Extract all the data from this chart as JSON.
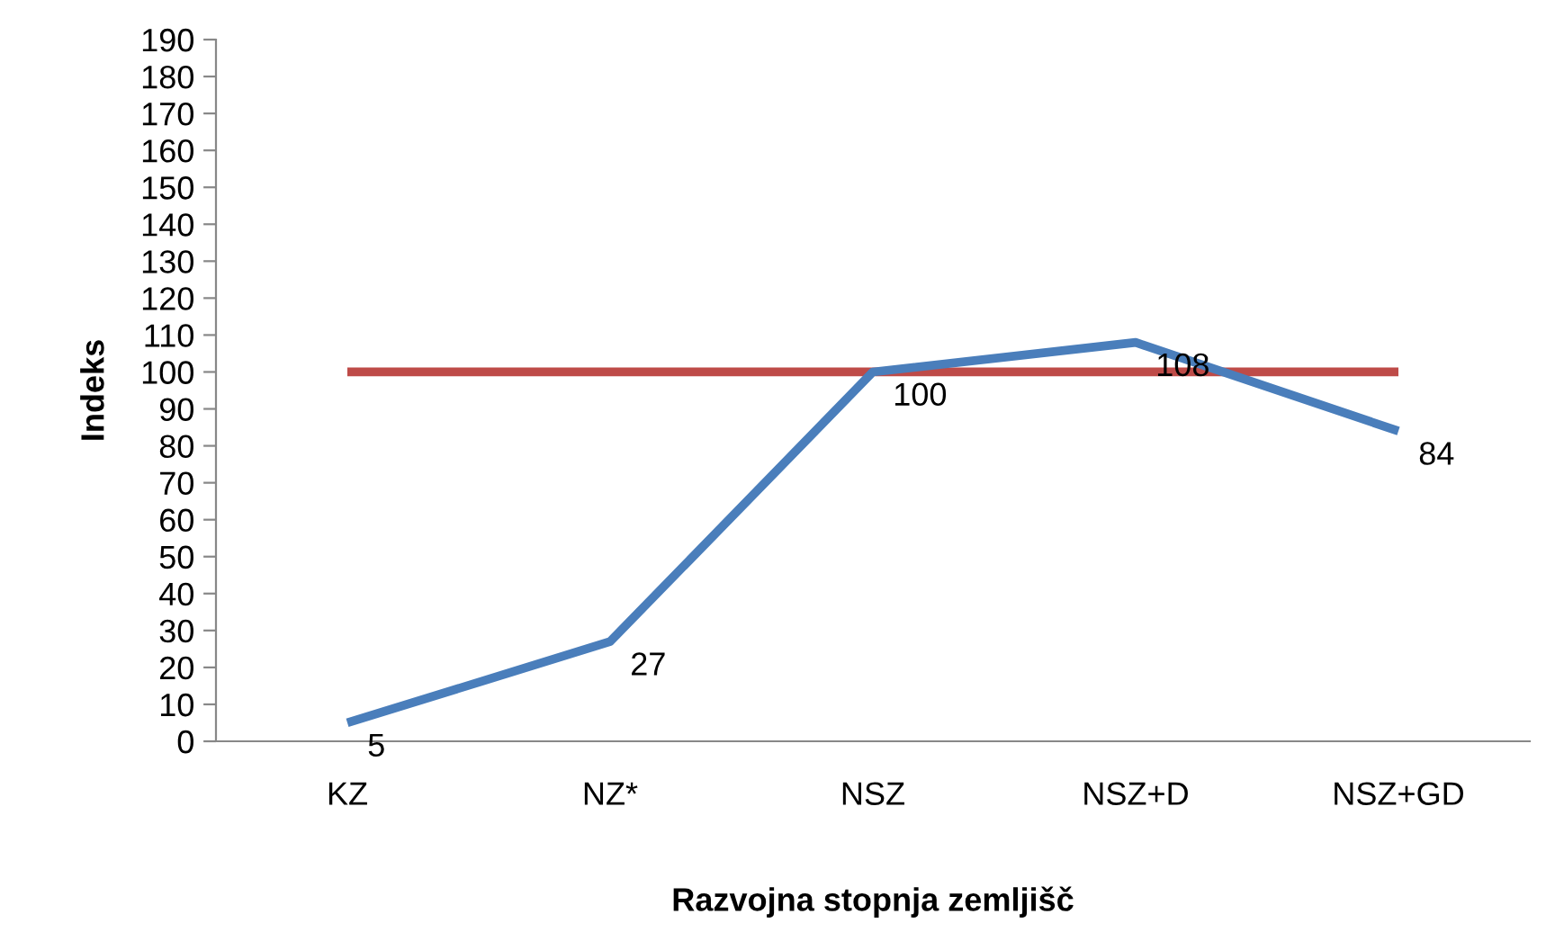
{
  "chart_data": {
    "type": "line",
    "xlabel": "Razvojna stopnja zemljišč",
    "ylabel": "Indeks",
    "categories": [
      "KZ",
      "NZ*",
      "NSZ",
      "NSZ+D",
      "NSZ+GD"
    ],
    "series": [
      {
        "color": "#4a7ebb",
        "values": [
          5,
          27,
          100,
          108,
          84
        ],
        "value_labels": [
          "5",
          "27",
          "100",
          "108",
          "84"
        ]
      },
      {
        "color": "#be4b48",
        "values": [
          100,
          100,
          100,
          100,
          100
        ]
      }
    ],
    "ylim": [
      0,
      190
    ],
    "yticks": [
      0,
      10,
      20,
      30,
      40,
      50,
      60,
      70,
      80,
      90,
      100,
      110,
      120,
      130,
      140,
      150,
      160,
      170,
      180,
      190
    ],
    "grid": false,
    "marker": "none",
    "line_style": "solid"
  }
}
